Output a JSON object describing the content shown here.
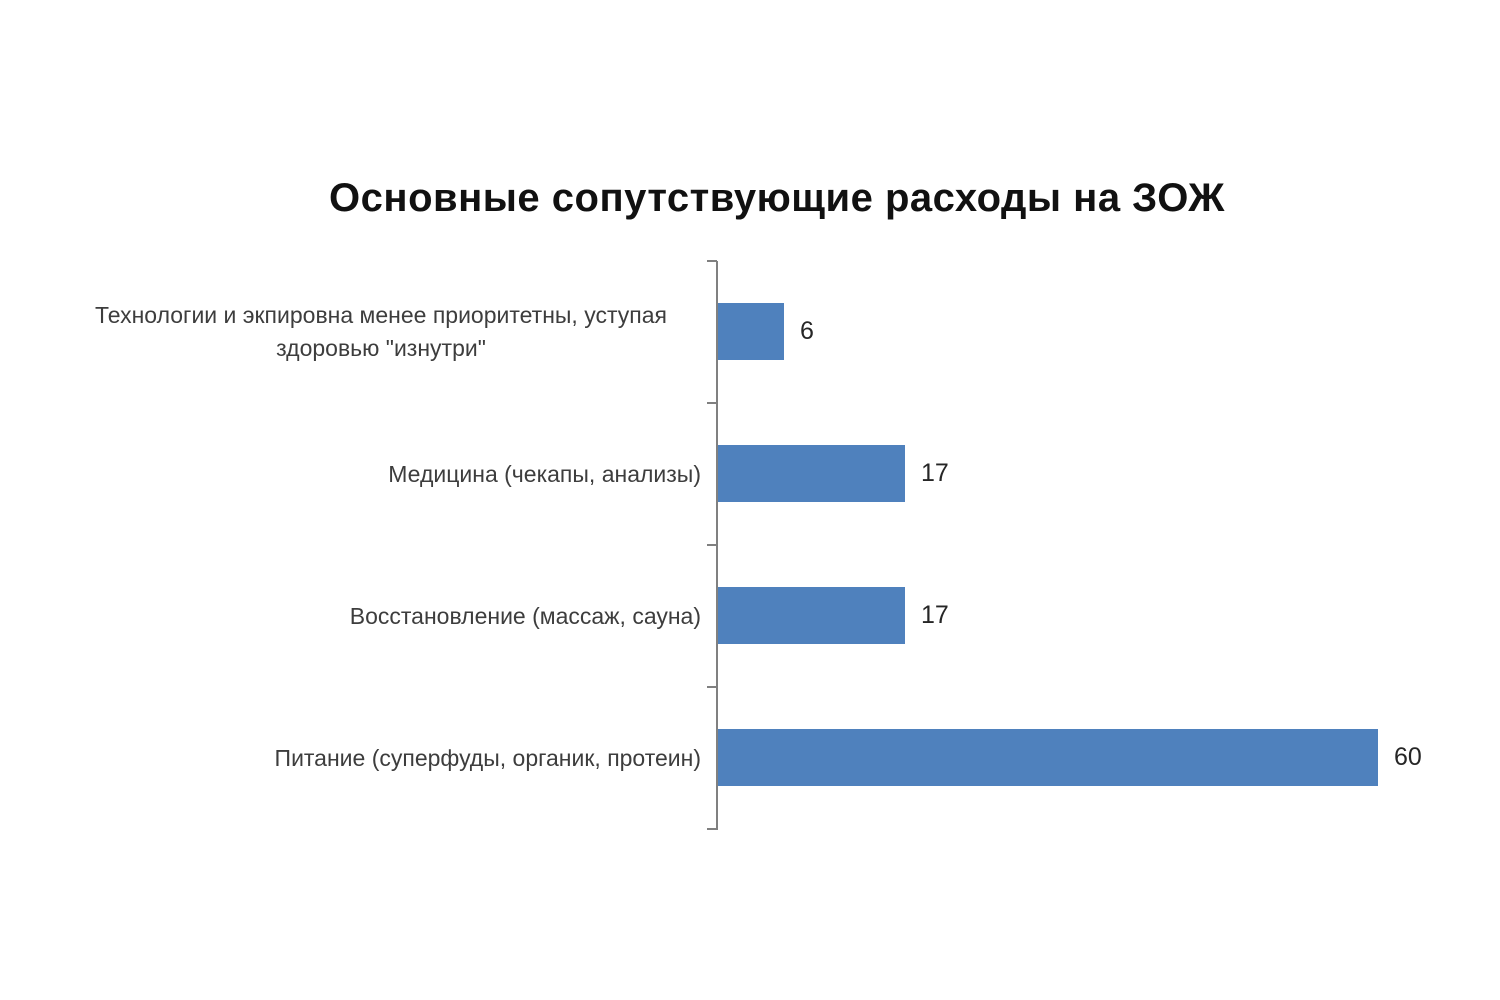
{
  "chart_data": {
    "type": "bar",
    "orientation": "horizontal",
    "title": "Основные сопутствующие расходы на ЗОЖ",
    "categories": [
      "Технологии и экпировна менее приоритетны, уступая здоровью \"изнутри\"",
      "Медицина  (чекапы, анализы)",
      "Восстановление (массаж, сауна)",
      "Питание (суперфуды, органик, протеин)"
    ],
    "values": [
      6,
      17,
      17,
      60
    ],
    "data_labels": [
      "6",
      "17",
      "17",
      "60"
    ],
    "category_order": "top-to-bottom",
    "xlim": [
      0,
      70
    ],
    "x_axis_visible": false,
    "value_labels_visible": true,
    "grid": false,
    "legend": "none",
    "bar_color": "#4f81bd",
    "axis_color": "#808080",
    "title_color": "#111111",
    "category_label_color": "#3d3d3d",
    "value_label_color": "#262626"
  }
}
